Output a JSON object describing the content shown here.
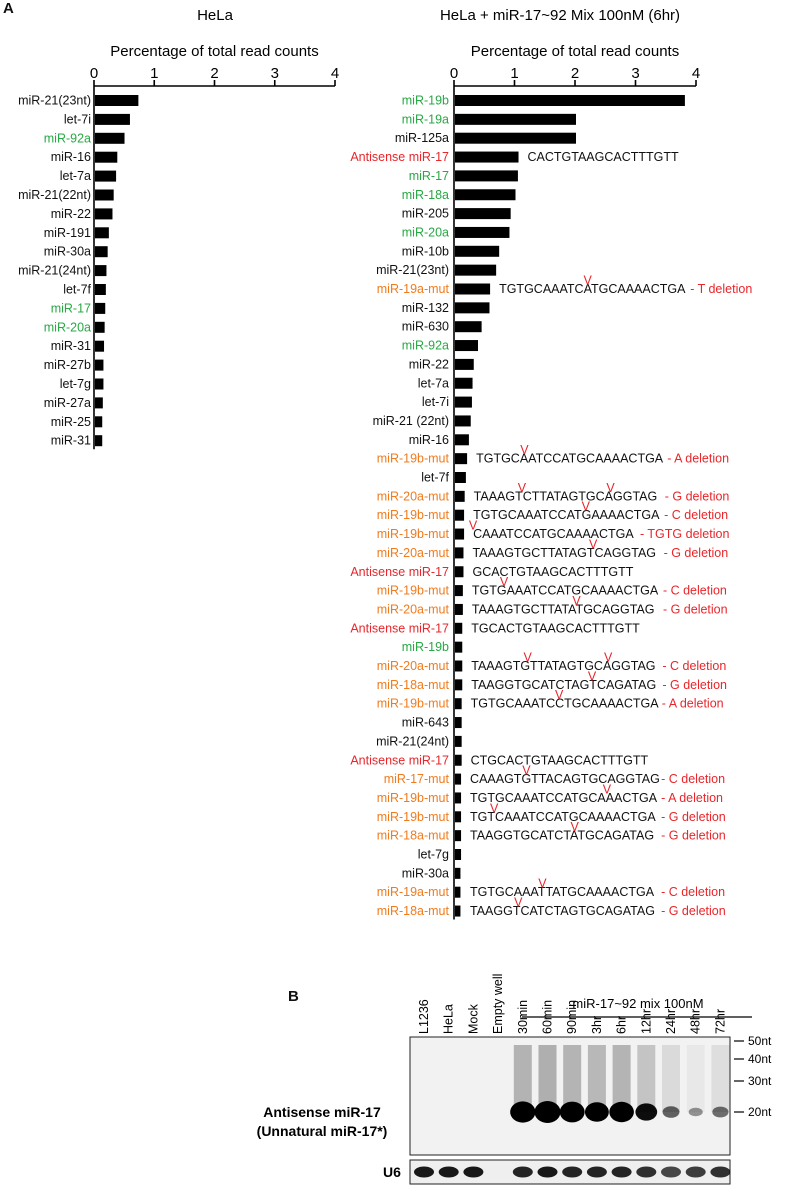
{
  "panels": {
    "a_label": "A",
    "b_label": "B"
  },
  "colors": {
    "green": "#27a844",
    "red": "#e8262b",
    "orange": "#f07b1d",
    "black": "#111111"
  },
  "chart_data": [
    {
      "type": "bar",
      "orientation": "horizontal",
      "title": "HeLa",
      "xlabel": "Percentage of total read counts",
      "xlim": [
        0,
        4
      ],
      "xticks": [
        "0",
        "1",
        "2",
        "3",
        "4"
      ],
      "categories": [
        {
          "label": "miR-21(23nt)",
          "color": "black"
        },
        {
          "label": "let-7i",
          "color": "black"
        },
        {
          "label": "miR-92a",
          "color": "green"
        },
        {
          "label": "miR-16",
          "color": "black"
        },
        {
          "label": "let-7a",
          "color": "black"
        },
        {
          "label": "miR-21(22nt)",
          "color": "black"
        },
        {
          "label": "miR-22",
          "color": "black"
        },
        {
          "label": "miR-191",
          "color": "black"
        },
        {
          "label": "miR-30a",
          "color": "black"
        },
        {
          "label": "miR-21(24nt)",
          "color": "black"
        },
        {
          "label": "let-7f",
          "color": "black"
        },
        {
          "label": "miR-17",
          "color": "green"
        },
        {
          "label": "miR-20a",
          "color": "green"
        },
        {
          "label": "miR-31",
          "color": "black"
        },
        {
          "label": "miR-27b",
          "color": "black"
        },
        {
          "label": "let-7g",
          "color": "black"
        },
        {
          "label": "miR-27a",
          "color": "black"
        },
        {
          "label": "miR-25",
          "color": "black"
        },
        {
          "label": "miR-31",
          "color": "black"
        }
      ],
      "values": [
        0.72,
        0.58,
        0.49,
        0.37,
        0.35,
        0.31,
        0.29,
        0.23,
        0.21,
        0.19,
        0.18,
        0.17,
        0.16,
        0.15,
        0.14,
        0.14,
        0.13,
        0.12,
        0.12
      ]
    },
    {
      "type": "bar",
      "orientation": "horizontal",
      "title": "HeLa + miR-17~92 Mix 100nM (6hr)",
      "xlabel": "Percentage of total read counts",
      "xlim": [
        0,
        4
      ],
      "xticks": [
        "0",
        "1",
        "2",
        "3",
        "4"
      ],
      "categories": [
        {
          "label": "miR-19b",
          "color": "green"
        },
        {
          "label": "miR-19a",
          "color": "green"
        },
        {
          "label": "miR-125a",
          "color": "black"
        },
        {
          "label": "Antisense miR-17",
          "color": "red",
          "seq": "CACTGTAAGCACTTTGTT"
        },
        {
          "label": "miR-17",
          "color": "green"
        },
        {
          "label": "miR-18a",
          "color": "green"
        },
        {
          "label": "miR-205",
          "color": "black"
        },
        {
          "label": "miR-20a",
          "color": "green"
        },
        {
          "label": "miR-10b",
          "color": "black"
        },
        {
          "label": "miR-21(23nt)",
          "color": "black"
        },
        {
          "label": "miR-19a-mut",
          "color": "orange",
          "seq": "TGTGCAAATCATGCAAAACTGA",
          "mark": 11,
          "note": "- T deletion"
        },
        {
          "label": "miR-132",
          "color": "black"
        },
        {
          "label": "miR-630",
          "color": "black"
        },
        {
          "label": "miR-92a",
          "color": "green"
        },
        {
          "label": "miR-22",
          "color": "black"
        },
        {
          "label": "let-7a",
          "color": "black"
        },
        {
          "label": "let-7i",
          "color": "black"
        },
        {
          "label": "miR-21 (22nt)",
          "color": "black"
        },
        {
          "label": "miR-16",
          "color": "black"
        },
        {
          "label": "miR-19b-mut",
          "color": "orange",
          "seq": "TGTGCAATCCATGCAAAACTGA",
          "mark": 6,
          "note": "- A deletion"
        },
        {
          "label": "let-7f",
          "color": "black"
        },
        {
          "label": "miR-20a-mut",
          "color": "orange",
          "seq": "TAAAGTCTTATAGTGCAGGTAG",
          "mark": 6,
          "mark2": 17,
          "note": "- G deletion"
        },
        {
          "label": "miR-19b-mut",
          "color": "orange",
          "seq": "TGTGCAAATCCATGAAAACTGA",
          "mark": 14,
          "note": "- C deletion"
        },
        {
          "label": "miR-19b-mut",
          "color": "orange",
          "seq": "CAAATCCATGCAAAACTGA",
          "mark": 0,
          "note": "- TGTG deletion"
        },
        {
          "label": "miR-20a-mut",
          "color": "orange",
          "seq": "TAAAGTGCTTATAGTCAGGTAG",
          "mark": 15,
          "note": "- G deletion"
        },
        {
          "label": "Antisense miR-17",
          "color": "red",
          "seq": "GCACTGTAAGCACTTTGTT"
        },
        {
          "label": "miR-19b-mut",
          "color": "orange",
          "seq": "TGTGAAATCCATGCAAAACTGA",
          "mark": 4,
          "note": "- C deletion"
        },
        {
          "label": "miR-20a-mut",
          "color": "orange",
          "seq": "TAAAGTGCTTATATGCAGGTAG",
          "mark": 13,
          "note": "- G deletion"
        },
        {
          "label": "Antisense miR-17",
          "color": "red",
          "seq": "TGCACTGTAAGCACTTTGTT"
        },
        {
          "label": "miR-19b",
          "color": "green"
        },
        {
          "label": "miR-20a-mut",
          "color": "orange",
          "seq": "TAAAGTGTTATAGTGCAGGTAG",
          "mark": 7,
          "mark2": 17,
          "note": "- C deletion"
        },
        {
          "label": "miR-18a-mut",
          "color": "orange",
          "seq": "TAAGGTGCATCTAGTCAGATAG",
          "mark": 15,
          "note": "- G deletion"
        },
        {
          "label": "miR-19b-mut",
          "color": "orange",
          "seq": "TGTGCAAATCCTGCAAAACTGA",
          "mark": 11,
          "note": "- A deletion"
        },
        {
          "label": "miR-643",
          "color": "black"
        },
        {
          "label": "miR-21(24nt)",
          "color": "black"
        },
        {
          "label": "Antisense miR-17",
          "color": "red",
          "seq": "CTGCACTGTAAGCACTTTGTT"
        },
        {
          "label": "miR-17-mut",
          "color": "orange",
          "seq": "CAAAGTGTTACAGTGCAGGTAG",
          "mark": 7,
          "note": "- C deletion"
        },
        {
          "label": "miR-19b-mut",
          "color": "orange",
          "seq": "TGTGCAAATCCATGCAAACTGA",
          "mark": 17,
          "note": "- A deletion"
        },
        {
          "label": "miR-19b-mut",
          "color": "orange",
          "seq": "TGTCAAATCCATGCAAAACTGA",
          "mark": 3,
          "note": "- G deletion"
        },
        {
          "label": "miR-18a-mut",
          "color": "orange",
          "seq": "TAAGGTGCATCTATGCAGATAG",
          "mark": 13,
          "note": "- G deletion"
        },
        {
          "label": "let-7g",
          "color": "black"
        },
        {
          "label": "miR-30a",
          "color": "black"
        },
        {
          "label": "miR-19a-mut",
          "color": "orange",
          "seq": "TGTGCAAATTATGCAAAACTGA",
          "mark": 9,
          "note": "- C deletion"
        },
        {
          "label": "miR-18a-mut",
          "color": "orange",
          "seq": "TAAGGTCATCTAGTGCAGATAG",
          "mark": 6,
          "note": "- G deletion"
        }
      ],
      "values": [
        3.8,
        2.0,
        2.0,
        1.05,
        1.04,
        1.0,
        0.92,
        0.9,
        0.73,
        0.68,
        0.58,
        0.57,
        0.44,
        0.38,
        0.31,
        0.29,
        0.28,
        0.26,
        0.23,
        0.2,
        0.18,
        0.16,
        0.15,
        0.15,
        0.14,
        0.14,
        0.13,
        0.13,
        0.12,
        0.12,
        0.12,
        0.12,
        0.11,
        0.11,
        0.11,
        0.11,
        0.1,
        0.1,
        0.1,
        0.1,
        0.1,
        0.09,
        0.09,
        0.09
      ]
    }
  ],
  "blot": {
    "lanes": [
      "L1236",
      "HeLa",
      "Mock",
      "Empty well",
      "30min",
      "60min",
      "90min",
      "3hr",
      "6hr",
      "12hr",
      "24hr",
      "48hr",
      "72hr"
    ],
    "group_label": "miR-17~92 mix 100nM",
    "size_markers": [
      "50nt",
      "40nt",
      "30nt",
      "20nt"
    ],
    "sample_label_1": "Antisense miR-17",
    "sample_label_2": "(Unnatural miR-17*)",
    "u6_label": "U6",
    "band_intensity": [
      0,
      0,
      0,
      0,
      0.95,
      1.0,
      0.92,
      0.85,
      0.9,
      0.7,
      0.35,
      0.15,
      0.3
    ],
    "u6_intensity": [
      0.9,
      0.9,
      0.9,
      0,
      0.85,
      0.9,
      0.85,
      0.85,
      0.85,
      0.8,
      0.7,
      0.75,
      0.8
    ]
  }
}
